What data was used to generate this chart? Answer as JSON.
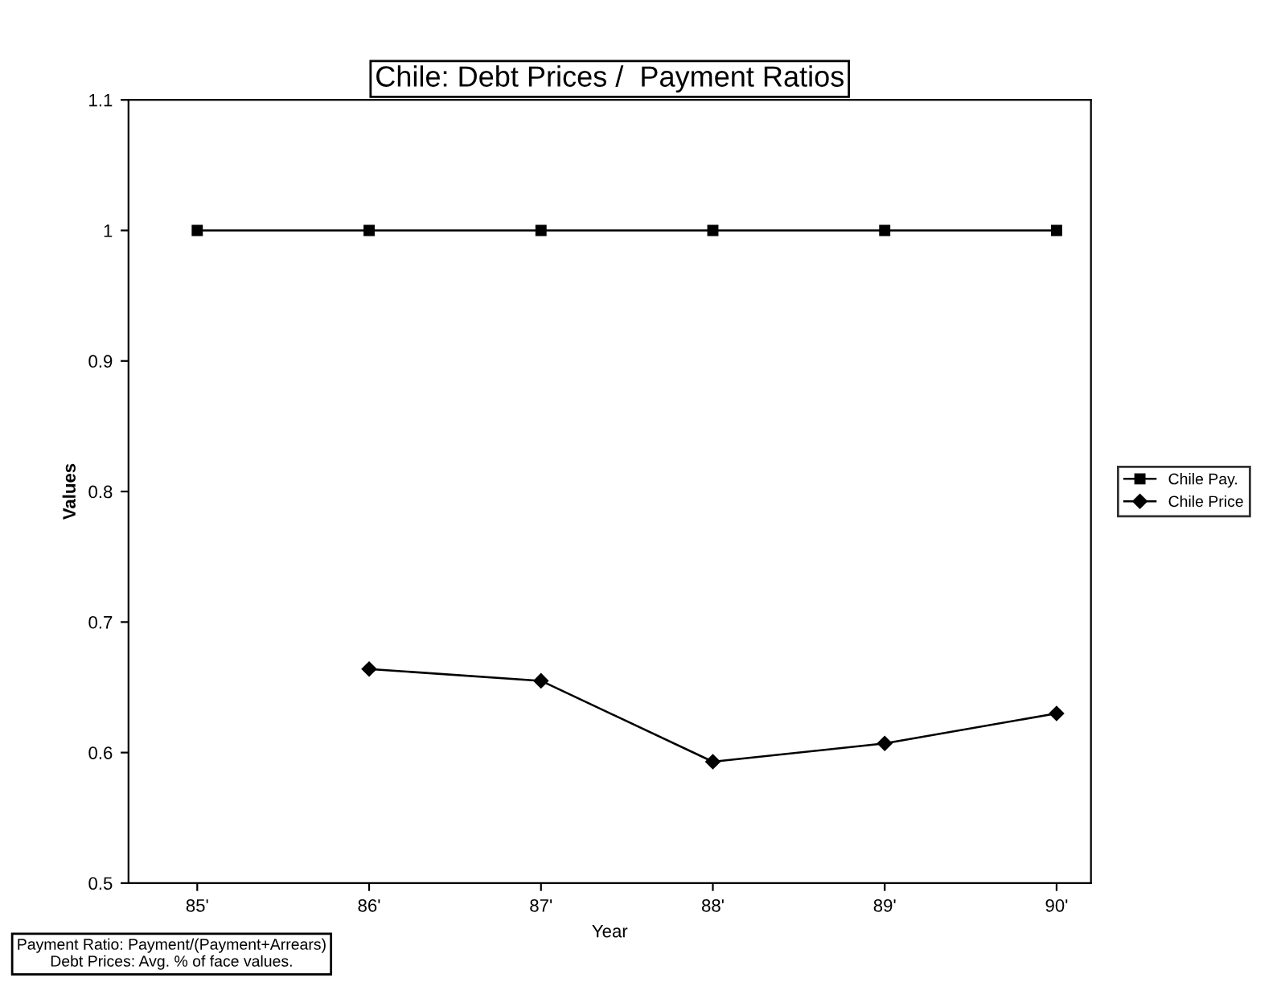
{
  "chart_data": {
    "type": "line",
    "title": "Chile: Debt Prices /  Payment Ratios",
    "xlabel": "Year",
    "ylabel": "Values",
    "categories": [
      "85'",
      "86'",
      "87'",
      "88'",
      "89'",
      "90'"
    ],
    "series": [
      {
        "name": "Chile Pay.",
        "color": "#000000",
        "marker": "square",
        "values": [
          1,
          1,
          1,
          1,
          1,
          1
        ]
      },
      {
        "name": "Chile Price",
        "color": "#000000",
        "marker": "diamond",
        "values": [
          null,
          0.664,
          0.655,
          0.593,
          0.607,
          0.63
        ]
      }
    ],
    "ylim": [
      0.5,
      1.1
    ],
    "yticks": [
      0.5,
      0.6,
      0.7,
      0.8,
      0.9,
      1,
      1.1
    ],
    "grid": false,
    "legend": "right",
    "annotations": [
      "Payment Ratio: Payment/(Payment+Arrears)\nDebt Prices: Avg. % of face values."
    ]
  }
}
